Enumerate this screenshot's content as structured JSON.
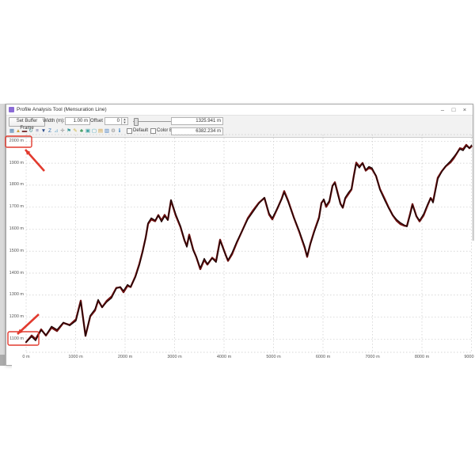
{
  "window": {
    "title": "Profile Analysis Tool (Mensuration Line)",
    "controls": {
      "minimize": "–",
      "maximize": "□",
      "close": "×"
    }
  },
  "toolbar": {
    "set_buffer_frame_label": "Set Buffer Frame",
    "width_label": "Width (m):",
    "width_value": "1.00 m",
    "offset_label": "Offset",
    "offset_value": "0",
    "default_label": "Default",
    "color_by_model_label": "Color By Model",
    "elevation_readout": "1325.941 m",
    "distance_readout": "6382.234 m",
    "icons": [
      {
        "name": "grid-icon",
        "glyph": "▦",
        "color": "#4a7faf"
      },
      {
        "name": "mountain-icon",
        "glyph": "▲",
        "color": "#c9a03a"
      },
      {
        "name": "save-icon",
        "glyph": "▬",
        "color": "#7a3a3a"
      },
      {
        "name": "refresh-icon",
        "glyph": "↻",
        "color": "#3a8a8a"
      },
      {
        "name": "layers-icon",
        "glyph": "≡",
        "color": "#6a6aa0"
      },
      {
        "name": "marker-icon",
        "glyph": "▼",
        "color": "#2a4a8a"
      },
      {
        "name": "z-order-icon",
        "glyph": "Z",
        "color": "#2a6ab0"
      },
      {
        "name": "ruler-icon",
        "glyph": "⊿",
        "color": "#7ab0d0"
      },
      {
        "name": "crosshair-icon",
        "glyph": "✛",
        "color": "#8a8a8a"
      },
      {
        "name": "flag-icon",
        "glyph": "⚑",
        "color": "#3a9a9a"
      },
      {
        "name": "pencil-icon",
        "glyph": "✎",
        "color": "#c9b03a"
      },
      {
        "name": "vegetation-icon",
        "glyph": "♣",
        "color": "#3a9a5a"
      },
      {
        "name": "select-box-icon",
        "glyph": "▣",
        "color": "#3aa0a0"
      },
      {
        "name": "frame-icon",
        "glyph": "▢",
        "color": "#3aa0b0"
      },
      {
        "name": "folder-icon",
        "glyph": "▤",
        "color": "#d0a040"
      },
      {
        "name": "chart-icon",
        "glyph": "▥",
        "color": "#4a80c0"
      },
      {
        "name": "gear-icon",
        "glyph": "⚙",
        "color": "#909090"
      },
      {
        "name": "help-icon",
        "glyph": "ℹ",
        "color": "#2a7ac0"
      }
    ]
  },
  "annotations": {
    "color": "#e23a2e",
    "boxed_labels": [
      "2000 m",
      "1100 m"
    ],
    "arrows": [
      "arrow-to-2000m-label",
      "arrow-to-1100m-label"
    ]
  },
  "chart_data": {
    "type": "line",
    "title": "",
    "xlabel": "",
    "ylabel": "",
    "unit": "m",
    "grid": true,
    "legend": "none",
    "xlim": [
      0,
      9000
    ],
    "ylim": [
      1040,
      2030
    ],
    "x_ticks": [
      {
        "v": 0,
        "label": "0 m"
      },
      {
        "v": 1000,
        "label": "1000 m"
      },
      {
        "v": 2000,
        "label": "2000 m"
      },
      {
        "v": 3000,
        "label": "3000 m"
      },
      {
        "v": 4000,
        "label": "4000 m"
      },
      {
        "v": 5000,
        "label": "5000 m"
      },
      {
        "v": 6000,
        "label": "6000 m"
      },
      {
        "v": 7000,
        "label": "7000 m"
      },
      {
        "v": 8000,
        "label": "8000 m"
      },
      {
        "v": 9000,
        "label": "9000 m"
      }
    ],
    "y_ticks": [
      {
        "v": 2000,
        "label": "2000 m"
      },
      {
        "v": 1900,
        "label": "1900 m"
      },
      {
        "v": 1800,
        "label": "1800 m"
      },
      {
        "v": 1700,
        "label": "1700 m"
      },
      {
        "v": 1600,
        "label": "1600 m"
      },
      {
        "v": 1500,
        "label": "1500 m"
      },
      {
        "v": 1400,
        "label": "1400 m"
      },
      {
        "v": 1300,
        "label": "1300 m"
      },
      {
        "v": 1200,
        "label": "1200 m"
      },
      {
        "v": 1100,
        "label": "1100 m"
      }
    ],
    "line_color_outer": "#6d1010",
    "line_color_inner": "#1c0303",
    "series": [
      {
        "name": "terrain-profile",
        "points": [
          [
            0,
            1086
          ],
          [
            112,
            1111
          ],
          [
            192,
            1093
          ],
          [
            304,
            1140
          ],
          [
            400,
            1118
          ],
          [
            512,
            1158
          ],
          [
            624,
            1143
          ],
          [
            752,
            1176
          ],
          [
            880,
            1161
          ],
          [
            1008,
            1183
          ],
          [
            1104,
            1269
          ],
          [
            1200,
            1114
          ],
          [
            1296,
            1208
          ],
          [
            1392,
            1237
          ],
          [
            1456,
            1280
          ],
          [
            1536,
            1244
          ],
          [
            1632,
            1269
          ],
          [
            1728,
            1287
          ],
          [
            1824,
            1330
          ],
          [
            1904,
            1338
          ],
          [
            1968,
            1320
          ],
          [
            2048,
            1348
          ],
          [
            2112,
            1338
          ],
          [
            2208,
            1381
          ],
          [
            2288,
            1435
          ],
          [
            2352,
            1492
          ],
          [
            2416,
            1561
          ],
          [
            2464,
            1629
          ],
          [
            2528,
            1651
          ],
          [
            2608,
            1640
          ],
          [
            2672,
            1662
          ],
          [
            2736,
            1633
          ],
          [
            2800,
            1658
          ],
          [
            2864,
            1640
          ],
          [
            2928,
            1734
          ],
          [
            3024,
            1669
          ],
          [
            3120,
            1615
          ],
          [
            3200,
            1550
          ],
          [
            3248,
            1518
          ],
          [
            3296,
            1568
          ],
          [
            3376,
            1503
          ],
          [
            3440,
            1474
          ],
          [
            3520,
            1424
          ],
          [
            3600,
            1467
          ],
          [
            3664,
            1442
          ],
          [
            3760,
            1467
          ],
          [
            3840,
            1449
          ],
          [
            3920,
            1546
          ],
          [
            4032,
            1482
          ],
          [
            4080,
            1460
          ],
          [
            4160,
            1492
          ],
          [
            4256,
            1543
          ],
          [
            4368,
            1593
          ],
          [
            4480,
            1644
          ],
          [
            4592,
            1680
          ],
          [
            4704,
            1716
          ],
          [
            4816,
            1744
          ],
          [
            4912,
            1672
          ],
          [
            4976,
            1651
          ],
          [
            5088,
            1701
          ],
          [
            5168,
            1737
          ],
          [
            5216,
            1766
          ],
          [
            5296,
            1723
          ],
          [
            5408,
            1654
          ],
          [
            5520,
            1593
          ],
          [
            5632,
            1521
          ],
          [
            5680,
            1478
          ],
          [
            5744,
            1532
          ],
          [
            5824,
            1586
          ],
          [
            5920,
            1647
          ],
          [
            5968,
            1716
          ],
          [
            6016,
            1737
          ],
          [
            6064,
            1708
          ],
          [
            6128,
            1730
          ],
          [
            6192,
            1798
          ],
          [
            6240,
            1809
          ],
          [
            6288,
            1766
          ],
          [
            6352,
            1712
          ],
          [
            6400,
            1698
          ],
          [
            6448,
            1744
          ],
          [
            6512,
            1766
          ],
          [
            6576,
            1784
          ],
          [
            6624,
            1842
          ],
          [
            6672,
            1896
          ],
          [
            6736,
            1878
          ],
          [
            6800,
            1899
          ],
          [
            6864,
            1870
          ],
          [
            6928,
            1885
          ],
          [
            6992,
            1878
          ],
          [
            7072,
            1842
          ],
          [
            7152,
            1777
          ],
          [
            7248,
            1730
          ],
          [
            7328,
            1694
          ],
          [
            7408,
            1665
          ],
          [
            7488,
            1644
          ],
          [
            7568,
            1629
          ],
          [
            7648,
            1618
          ],
          [
            7696,
            1611
          ],
          [
            7760,
            1662
          ],
          [
            7808,
            1708
          ],
          [
            7888,
            1658
          ],
          [
            7952,
            1640
          ],
          [
            8032,
            1669
          ],
          [
            8112,
            1712
          ],
          [
            8176,
            1741
          ],
          [
            8224,
            1719
          ],
          [
            8320,
            1827
          ],
          [
            8400,
            1860
          ],
          [
            8480,
            1888
          ],
          [
            8576,
            1910
          ],
          [
            8640,
            1928
          ],
          [
            8704,
            1946
          ],
          [
            8768,
            1964
          ],
          [
            8832,
            1957
          ],
          [
            8896,
            1978
          ],
          [
            8960,
            1968
          ],
          [
            9000,
            1982
          ]
        ]
      }
    ]
  }
}
